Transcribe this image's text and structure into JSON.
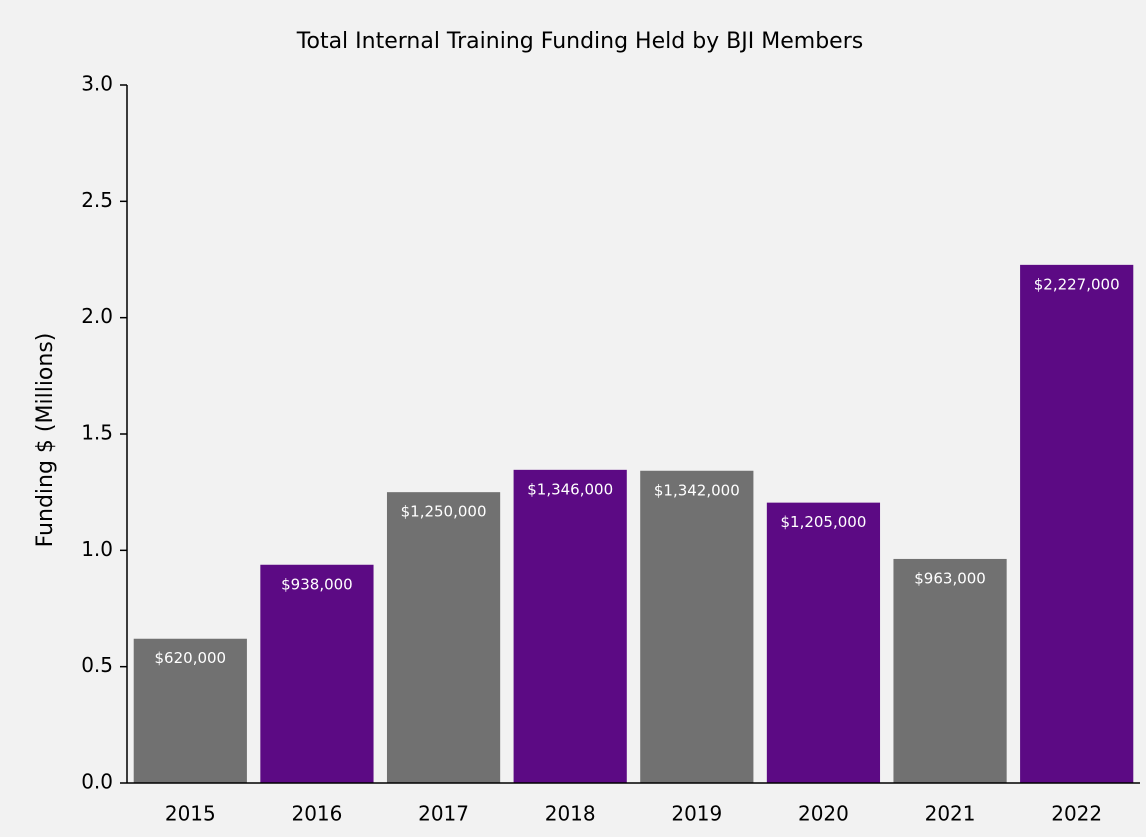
{
  "chart_data": {
    "type": "bar",
    "title": "Total Internal Training Funding Held by BJI Members",
    "y_label": "Funding $ (Millions)",
    "categories": [
      "2015",
      "2016",
      "2017",
      "2018",
      "2019",
      "2020",
      "2021",
      "2022"
    ],
    "values": [
      0.62,
      0.938,
      1.25,
      1.346,
      1.342,
      1.205,
      0.963,
      2.227
    ],
    "value_labels": [
      "$620,000",
      "$938,000",
      "$1,250,000",
      "$1,346,000",
      "$1,342,000",
      "$1,205,000",
      "$963,000",
      "$2,227,000"
    ],
    "colors": [
      "#717171",
      "#5c0a84",
      "#717171",
      "#5c0a84",
      "#717171",
      "#5c0a84",
      "#717171",
      "#5c0a84"
    ],
    "ylim": [
      0,
      3
    ],
    "yticks": [
      {
        "value": 0,
        "label": "0.0"
      },
      0.5,
      {
        "value": 1,
        "label": "1.0"
      },
      1.5,
      {
        "value": 2,
        "label": "2.0"
      },
      2.5,
      {
        "value": 3,
        "label": "3.0"
      }
    ],
    "grid": false
  }
}
